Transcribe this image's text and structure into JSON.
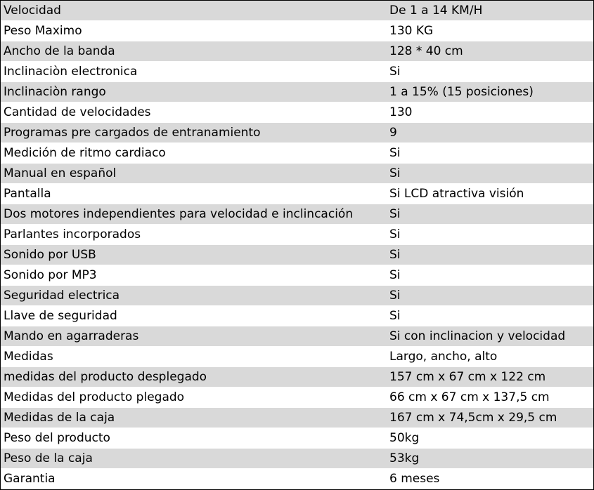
{
  "rows": [
    {
      "label": "Velocidad",
      "value": "De 1 a 14 KM/H"
    },
    {
      "label": "Peso Maximo",
      "value": "130 KG"
    },
    {
      "label": "Ancho de la banda",
      "value": "128 * 40 cm"
    },
    {
      "label": "Inclinaciòn electronica",
      "value": "Si"
    },
    {
      "label": "Inclinaciòn rango",
      "value": "1 a 15% (15 posiciones)"
    },
    {
      "label": "Cantidad de velocidades",
      "value": "130"
    },
    {
      "label": "Programas pre cargados de entranamiento",
      "value": "9"
    },
    {
      "label": "Medición de ritmo cardiaco",
      "value": "Si"
    },
    {
      "label": "Manual en español",
      "value": "Si"
    },
    {
      "label": "Pantalla",
      "value": "Si LCD atractiva visión"
    },
    {
      "label": "Dos motores independientes para velocidad e inclincación",
      "value": "Si"
    },
    {
      "label": "Parlantes incorporados",
      "value": "Si"
    },
    {
      "label": "Sonido por USB",
      "value": "Si"
    },
    {
      "label": "Sonido por MP3",
      "value": "Si"
    },
    {
      "label": "Seguridad electrica",
      "value": "Si"
    },
    {
      "label": "Llave de seguridad",
      "value": "Si"
    },
    {
      "label": "Mando en agarraderas",
      "value": "Si con inclinacion y velocidad"
    },
    {
      "label": "Medidas",
      "value": "Largo, ancho, alto"
    },
    {
      "label": "medidas del producto desplegado",
      "value": "157 cm x 67 cm x 122 cm"
    },
    {
      "label": "Medidas del producto plegado",
      "value": "66 cm x 67 cm x 137,5 cm"
    },
    {
      "label": "Medidas de la caja",
      "value": "167 cm x 74,5cm x 29,5 cm"
    },
    {
      "label": "Peso del producto",
      "value": "50kg"
    },
    {
      "label": "Peso de la caja",
      "value": "53kg"
    },
    {
      "label": "Garantia",
      "value": "6 meses"
    }
  ],
  "colors": {
    "shade": "#d9d9d9",
    "plain": "#ffffff",
    "border": "#000000"
  }
}
